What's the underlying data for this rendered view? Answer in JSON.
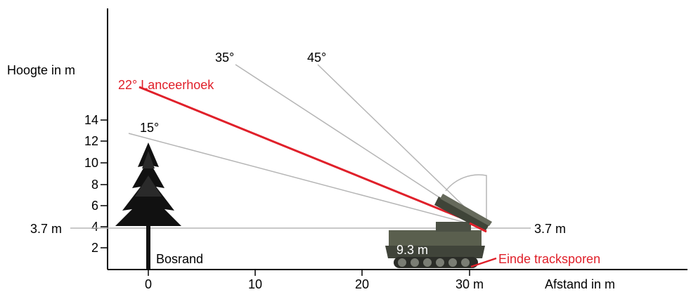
{
  "diagram": {
    "y_axis_label": "Hoogte in m",
    "x_axis_label": "Afstand in m",
    "y_ticks": [
      "14",
      "12",
      "10",
      "8",
      "6",
      "4",
      "2"
    ],
    "x_ticks": [
      "0",
      "10",
      "20",
      "30 m"
    ],
    "reference_left_label": "3.7 m",
    "reference_right_label": "3.7 m",
    "angles": [
      {
        "label": "35°",
        "color": "#b5b5b5"
      },
      {
        "label": "45°",
        "color": "#b5b5b5"
      },
      {
        "label": "15°",
        "color": "#b5b5b5"
      }
    ],
    "launch_angle_label": "22° Lanceerhoek",
    "launch_color": "#e0202a",
    "tree_label": "Bosrand",
    "vehicle_length_label": "9.3 m",
    "track_end_label": "Einde tracksporen",
    "tree_icon": "tree-icon",
    "vehicle_icon": "launcher-vehicle-icon"
  }
}
